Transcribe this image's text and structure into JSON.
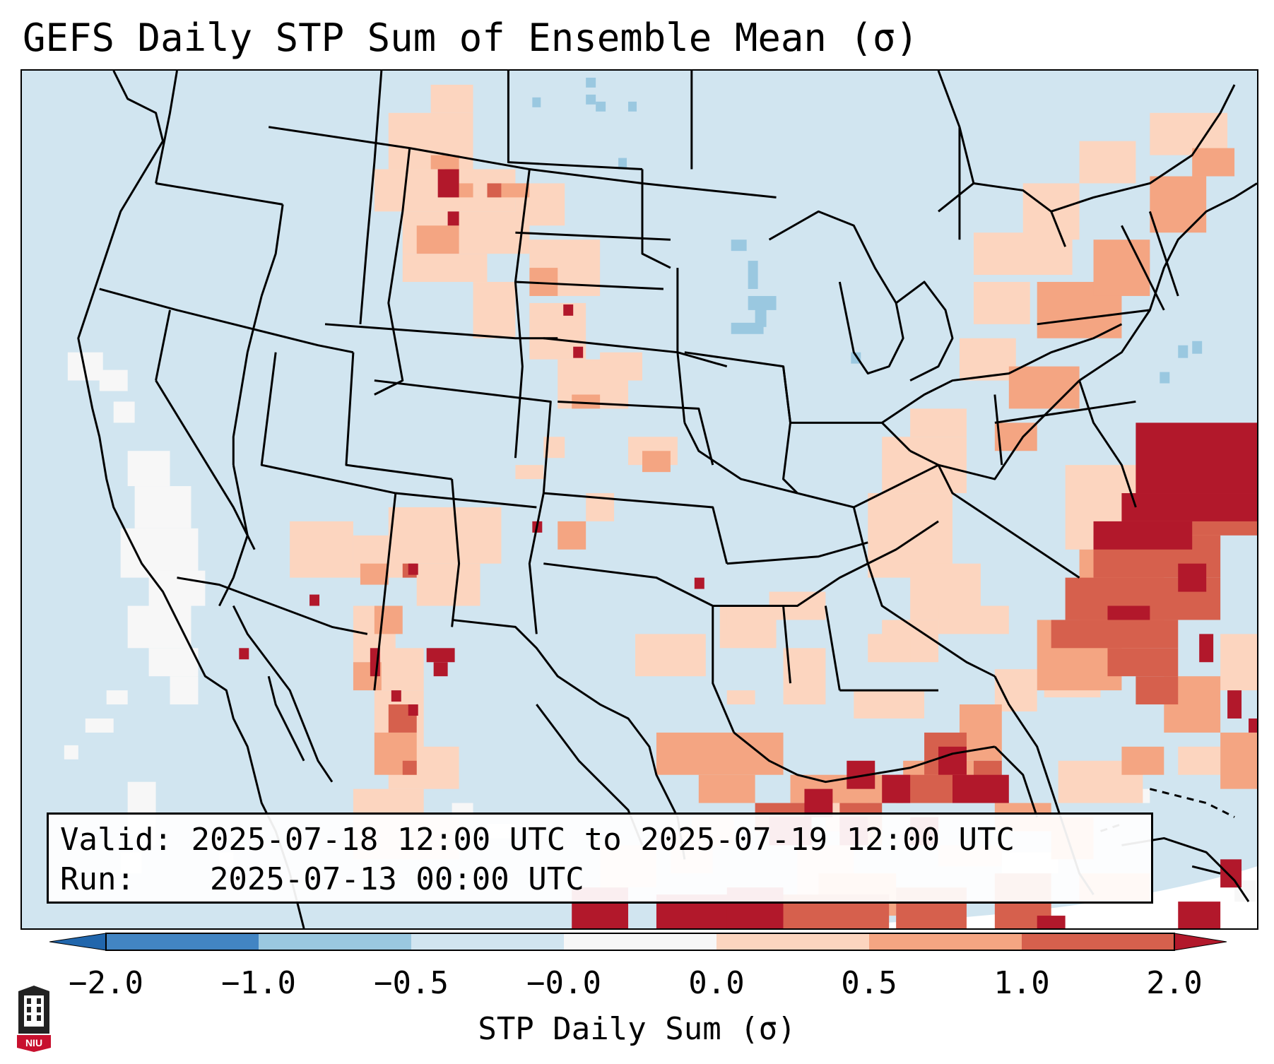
{
  "title": "GEFS Daily STP Sum of Ensemble Mean (σ)",
  "valid_box": {
    "valid_label": "Valid:",
    "valid_value": "2025-07-18 12:00 UTC to 2025-07-19 12:00 UTC",
    "run_label": "Run:",
    "run_value": "2025-07-13 00:00 UTC"
  },
  "colorbar": {
    "label": "STP Daily Sum (σ)",
    "ticks": [
      "−2.0",
      "−1.0",
      "−0.5",
      "−0.0",
      "0.0",
      "0.5",
      "1.0",
      "2.0"
    ],
    "colors": [
      "#4285c3",
      "#9ac8e0",
      "#d1e5f0",
      "#f7f7f7",
      "#fcd5bf",
      "#f4a582",
      "#d6604d",
      "#b2182b"
    ]
  },
  "map": {
    "background_color": "#d1e5f0",
    "regions": [
      {
        "name": "pacific-northeast-high",
        "level": "0.5 to 1.0"
      },
      {
        "name": "atlantic-offshore-max",
        "level": "> 2.0"
      },
      {
        "name": "gulf-of-mexico-max",
        "level": "> 2.0"
      },
      {
        "name": "northern-plains-scattered",
        "level": "0.0 to 2.0"
      },
      {
        "name": "southwest-scattered",
        "level": "0.0 to 2.0"
      },
      {
        "name": "pacific-coast-neutral",
        "level": "-0.0 to 0.0"
      }
    ]
  },
  "logo": {
    "text": "NIU"
  }
}
